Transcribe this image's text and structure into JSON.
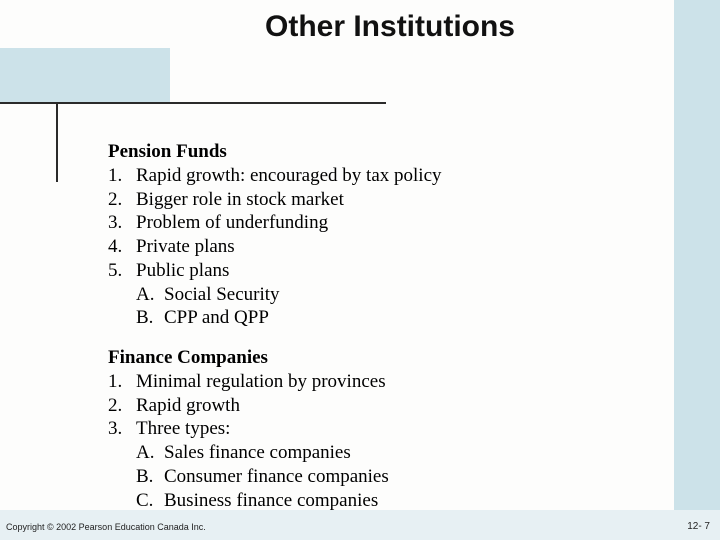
{
  "colors": {
    "background": "#fdfdfc",
    "band_blue": "#cce2e9",
    "footer_blue": "#e7f0f3",
    "rule": "#2a2a2a",
    "text": "#000000"
  },
  "title": "Other Institutions",
  "sections": [
    {
      "heading": "Pension Funds",
      "items": [
        {
          "n": "1.",
          "text": "Rapid growth: encouraged by tax policy"
        },
        {
          "n": "2.",
          "text": "Bigger role in stock market"
        },
        {
          "n": "3.",
          "text": "Problem of underfunding"
        },
        {
          "n": "4.",
          "text": "Private plans"
        },
        {
          "n": "5.",
          "text": "Public plans",
          "subs": [
            {
              "l": "A.",
              "text": "Social Security"
            },
            {
              "l": "B.",
              "text": "CPP and QPP"
            }
          ]
        }
      ]
    },
    {
      "heading": "Finance Companies",
      "items": [
        {
          "n": "1.",
          "text": "Minimal regulation by provinces"
        },
        {
          "n": "2.",
          "text": "Rapid growth"
        },
        {
          "n": "3.",
          "text": "Three types:",
          "subs": [
            {
              "l": "A.",
              "text": "Sales finance companies"
            },
            {
              "l": "B.",
              "text": "Consumer finance companies"
            },
            {
              "l": "C.",
              "text": "Business finance companies"
            }
          ]
        }
      ]
    }
  ],
  "footer": {
    "copyright": "Copyright © 2002 Pearson Education Canada Inc.",
    "page": "12- 7"
  }
}
